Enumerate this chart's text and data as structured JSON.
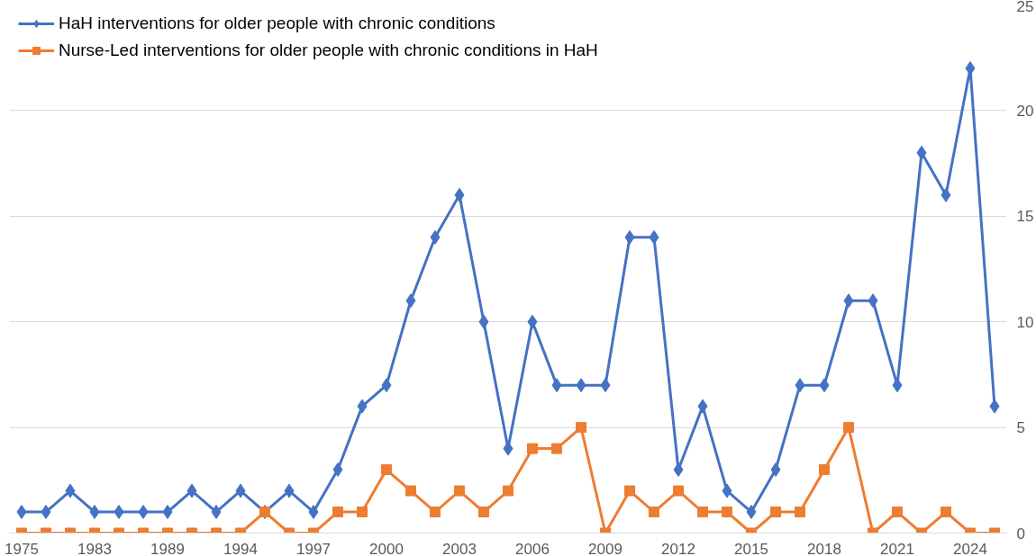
{
  "chart_data": {
    "type": "line",
    "categories": [
      "1975",
      null,
      null,
      "1983",
      null,
      null,
      "1989",
      null,
      null,
      "1994",
      null,
      null,
      "1997",
      null,
      null,
      "2000",
      null,
      null,
      "2003",
      null,
      null,
      "2006",
      null,
      null,
      "2009",
      null,
      null,
      "2012",
      null,
      null,
      "2015",
      null,
      null,
      "2018",
      null,
      null,
      "2021",
      null,
      null,
      "2024",
      null
    ],
    "series": [
      {
        "name": "HaH interventions for older people with chronic conditions",
        "color": "#4472c4",
        "marker": "diamond",
        "values": [
          1,
          1,
          2,
          1,
          1,
          1,
          1,
          2,
          1,
          2,
          1,
          2,
          1,
          3,
          6,
          7,
          11,
          14,
          16,
          10,
          4,
          10,
          7,
          7,
          7,
          14,
          14,
          3,
          6,
          2,
          1,
          3,
          7,
          7,
          11,
          11,
          7,
          18,
          16,
          22,
          6
        ]
      },
      {
        "name": "Nurse-Led interventions for older people with chronic conditions in HaH",
        "color": "#ed7d31",
        "marker": "square",
        "values": [
          0,
          0,
          0,
          0,
          0,
          0,
          0,
          0,
          0,
          0,
          1,
          0,
          0,
          1,
          1,
          3,
          2,
          1,
          2,
          1,
          2,
          4,
          4,
          5,
          0,
          2,
          1,
          2,
          1,
          1,
          0,
          1,
          1,
          3,
          5,
          0,
          1,
          0,
          1,
          0,
          0
        ]
      }
    ],
    "ylim": [
      0,
      25
    ],
    "yticks": [
      0,
      5,
      10,
      15,
      20,
      25
    ],
    "grid": "y",
    "legend": "top left",
    "line_style": "solid"
  }
}
